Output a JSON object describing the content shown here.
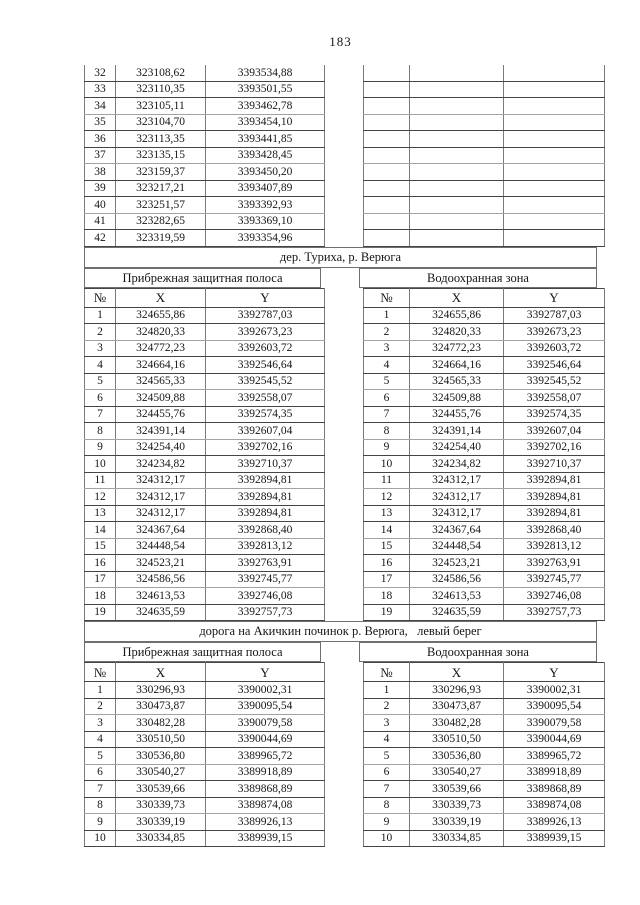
{
  "page": {
    "number": "183"
  },
  "colors": {
    "paper": "#ffffff",
    "ink": "#161616",
    "line_dark": "#454545",
    "line_gray": "#7a7a7a"
  },
  "continuation": {
    "left_rows": [
      [
        "32",
        "323108,62",
        "3393534,88"
      ],
      [
        "33",
        "323110,35",
        "3393501,55"
      ],
      [
        "34",
        "323105,11",
        "3393462,78"
      ],
      [
        "35",
        "323104,70",
        "3393454,10"
      ],
      [
        "36",
        "323113,35",
        "3393441,85"
      ],
      [
        "37",
        "323135,15",
        "3393428,45"
      ],
      [
        "38",
        "323159,37",
        "3393450,20"
      ],
      [
        "39",
        "323217,21",
        "3393407,89"
      ],
      [
        "40",
        "323251,57",
        "3393392,93"
      ],
      [
        "41",
        "323282,65",
        "3393369,10"
      ],
      [
        "42",
        "323319,59",
        "3393354,96"
      ]
    ],
    "right_rows": [
      [
        "",
        "",
        ""
      ],
      [
        "",
        "",
        ""
      ],
      [
        "",
        "",
        ""
      ],
      [
        "",
        "",
        ""
      ],
      [
        "",
        "",
        ""
      ],
      [
        "",
        "",
        ""
      ],
      [
        "",
        "",
        ""
      ],
      [
        "",
        "",
        ""
      ],
      [
        "",
        "",
        ""
      ],
      [
        "",
        "",
        ""
      ],
      [
        "",
        "",
        ""
      ]
    ]
  },
  "sections": [
    {
      "title": "дер. Туриха, р. Верюга",
      "columns": [
        "№",
        "X",
        "Y"
      ],
      "zones": [
        {
          "label": "Прибрежная защитная полоса",
          "rows": [
            [
              "1",
              "324655,86",
              "3392787,03"
            ],
            [
              "2",
              "324820,33",
              "3392673,23"
            ],
            [
              "3",
              "324772,23",
              "3392603,72"
            ],
            [
              "4",
              "324664,16",
              "3392546,64"
            ],
            [
              "5",
              "324565,33",
              "3392545,52"
            ],
            [
              "6",
              "324509,88",
              "3392558,07"
            ],
            [
              "7",
              "324455,76",
              "3392574,35"
            ],
            [
              "8",
              "324391,14",
              "3392607,04"
            ],
            [
              "9",
              "324254,40",
              "3392702,16"
            ],
            [
              "10",
              "324234,82",
              "3392710,37"
            ],
            [
              "11",
              "324312,17",
              "3392894,81"
            ],
            [
              "12",
              "324312,17",
              "3392894,81"
            ],
            [
              "13",
              "324312,17",
              "3392894,81"
            ],
            [
              "14",
              "324367,64",
              "3392868,40"
            ],
            [
              "15",
              "324448,54",
              "3392813,12"
            ],
            [
              "16",
              "324523,21",
              "3392763,91"
            ],
            [
              "17",
              "324586,56",
              "3392745,77"
            ],
            [
              "18",
              "324613,53",
              "3392746,08"
            ],
            [
              "19",
              "324635,59",
              "3392757,73"
            ]
          ]
        },
        {
          "label": "Водоохранная зона",
          "rows": [
            [
              "1",
              "324655,86",
              "3392787,03"
            ],
            [
              "2",
              "324820,33",
              "3392673,23"
            ],
            [
              "3",
              "324772,23",
              "3392603,72"
            ],
            [
              "4",
              "324664,16",
              "3392546,64"
            ],
            [
              "5",
              "324565,33",
              "3392545,52"
            ],
            [
              "6",
              "324509,88",
              "3392558,07"
            ],
            [
              "7",
              "324455,76",
              "3392574,35"
            ],
            [
              "8",
              "324391,14",
              "3392607,04"
            ],
            [
              "9",
              "324254,40",
              "3392702,16"
            ],
            [
              "10",
              "324234,82",
              "3392710,37"
            ],
            [
              "11",
              "324312,17",
              "3392894,81"
            ],
            [
              "12",
              "324312,17",
              "3392894,81"
            ],
            [
              "13",
              "324312,17",
              "3392894,81"
            ],
            [
              "14",
              "324367,64",
              "3392868,40"
            ],
            [
              "15",
              "324448,54",
              "3392813,12"
            ],
            [
              "16",
              "324523,21",
              "3392763,91"
            ],
            [
              "17",
              "324586,56",
              "3392745,77"
            ],
            [
              "18",
              "324613,53",
              "3392746,08"
            ],
            [
              "19",
              "324635,59",
              "3392757,73"
            ]
          ]
        }
      ]
    },
    {
      "title": "дорога на Акичкин починок р. Верюга,   левый берег",
      "columns": [
        "№",
        "X",
        "Y"
      ],
      "zones": [
        {
          "label": "Прибрежная защитная полоса",
          "rows": [
            [
              "1",
              "330296,93",
              "3390002,31"
            ],
            [
              "2",
              "330473,87",
              "3390095,54"
            ],
            [
              "3",
              "330482,28",
              "3390079,58"
            ],
            [
              "4",
              "330510,50",
              "3390044,69"
            ],
            [
              "5",
              "330536,80",
              "3389965,72"
            ],
            [
              "6",
              "330540,27",
              "3389918,89"
            ],
            [
              "7",
              "330539,66",
              "3389868,89"
            ],
            [
              "8",
              "330339,73",
              "3389874,08"
            ],
            [
              "9",
              "330339,19",
              "3389926,13"
            ],
            [
              "10",
              "330334,85",
              "3389939,15"
            ]
          ]
        },
        {
          "label": "Водоохранная зона",
          "rows": [
            [
              "1",
              "330296,93",
              "3390002,31"
            ],
            [
              "2",
              "330473,87",
              "3390095,54"
            ],
            [
              "3",
              "330482,28",
              "3390079,58"
            ],
            [
              "4",
              "330510,50",
              "3390044,69"
            ],
            [
              "5",
              "330536,80",
              "3389965,72"
            ],
            [
              "6",
              "330540,27",
              "3389918,89"
            ],
            [
              "7",
              "330539,66",
              "3389868,89"
            ],
            [
              "8",
              "330339,73",
              "3389874,08"
            ],
            [
              "9",
              "330339,19",
              "3389926,13"
            ],
            [
              "10",
              "330334,85",
              "3389939,15"
            ]
          ]
        }
      ]
    }
  ]
}
